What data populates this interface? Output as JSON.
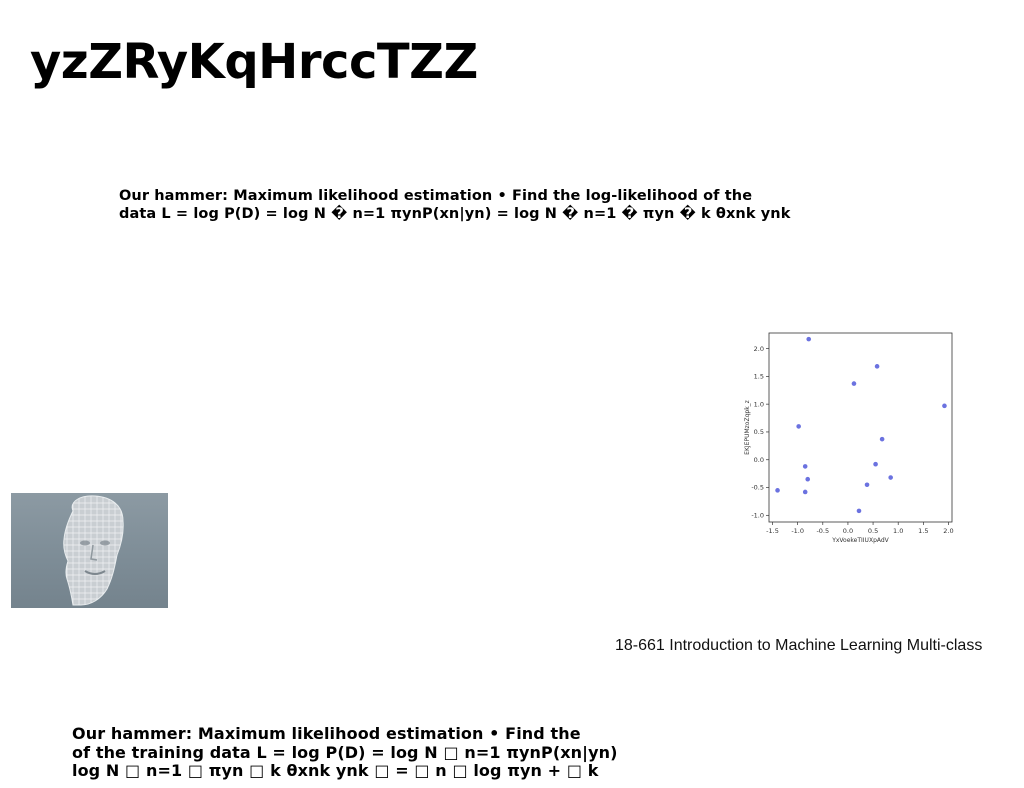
{
  "slide": {
    "title": "yzZRyKqHrccTZZ",
    "text_block_1": {
      "line1": "Our hammer: Maximum likelihood estimation • Find the log-likelihood of the",
      "line2": "data L = log P(D) = log N � n=1 πynP(xn|yn) = log N � n=1 � πyn � k θxnk ynk"
    },
    "footer_text": "18-661 Introduction to Machine Learning Multi-class",
    "text_block_2": {
      "line1": "Our hammer: Maximum likelihood estimation • Find the",
      "line2": "of the training data L = log P(D) = log N □ n=1 πynP(xn|yn)",
      "line3": "log N □ n=1 □ πyn □ k θxnk ynk □ = □ n □ log πyn + □ k"
    },
    "image_alt": "wireframe 3D head model"
  },
  "chart_data": {
    "type": "scatter",
    "xlabel": "YxVoekeTIIUXpAdV",
    "ylabel": "EKJEPUMzoZqpk_z",
    "xlim": [
      -1.5,
      2.0
    ],
    "ylim": [
      -1.0,
      2.25
    ],
    "xticks": [
      "-1.5",
      "-1.0",
      "-0.5",
      "0.0",
      "0.5",
      "1.0",
      "1.5",
      "2.0"
    ],
    "yticks": [
      "-1.0",
      "-0.5",
      "0.0",
      "0.5",
      "1.0",
      "1.5",
      "2.0"
    ],
    "color": "#6b72e0",
    "x": [
      -0.78,
      -1.4,
      -0.85,
      -0.8,
      -0.85,
      -0.98,
      0.12,
      0.58,
      0.68,
      0.55,
      0.38,
      0.85,
      0.22,
      1.92
    ],
    "y": [
      2.17,
      -0.55,
      -0.58,
      -0.35,
      -0.12,
      0.6,
      1.37,
      1.68,
      0.37,
      -0.08,
      -0.45,
      -0.32,
      -0.92,
      0.97
    ]
  }
}
